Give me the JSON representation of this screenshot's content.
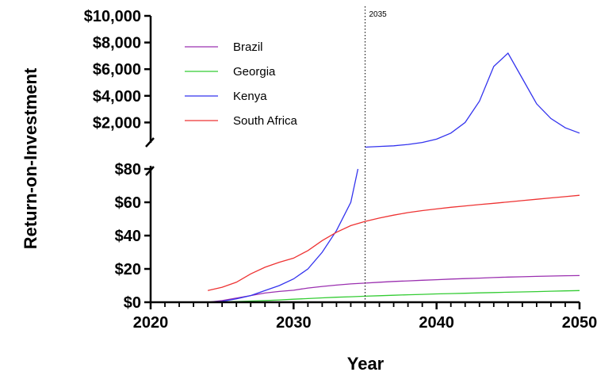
{
  "chart_data": {
    "type": "line",
    "xlabel": "Year",
    "ylabel": "Return-on-Investment",
    "xlim": [
      2020,
      2050
    ],
    "x_ticks": [
      2020,
      2030,
      2040,
      2050
    ],
    "x_tick_labels": [
      "2020",
      "2030",
      "2040",
      "2050"
    ],
    "y_axis_break": true,
    "lower_segment": {
      "ylim": [
        0,
        80
      ],
      "ticks": [
        0,
        20,
        40,
        60,
        80
      ],
      "tick_labels": [
        "$0",
        "$20",
        "$40",
        "$60",
        "$80"
      ]
    },
    "upper_segment": {
      "ylim": [
        0,
        10000
      ],
      "ticks": [
        2000,
        4000,
        6000,
        8000,
        10000
      ],
      "tick_labels": [
        "$2,000",
        "$4,000",
        "$6,000",
        "$8,000",
        "$10,000"
      ]
    },
    "reference_line": {
      "x": 2035,
      "label": "2035",
      "style": "dotted"
    },
    "legend_position": "upper-left",
    "grid": false,
    "series": [
      {
        "name": "Brazil",
        "color": "#9b30b0",
        "points": [
          [
            2024,
            0
          ],
          [
            2025,
            1
          ],
          [
            2026,
            2.5
          ],
          [
            2027,
            4
          ],
          [
            2028,
            5.5
          ],
          [
            2029,
            6.5
          ],
          [
            2030,
            7.2
          ],
          [
            2031,
            8.5
          ],
          [
            2032,
            9.5
          ],
          [
            2033,
            10.3
          ],
          [
            2034,
            11
          ],
          [
            2035,
            11.5
          ],
          [
            2036,
            12
          ],
          [
            2037,
            12.5
          ],
          [
            2038,
            12.8
          ],
          [
            2039,
            13.2
          ],
          [
            2040,
            13.5
          ],
          [
            2041,
            13.9
          ],
          [
            2042,
            14.2
          ],
          [
            2043,
            14.5
          ],
          [
            2044,
            14.8
          ],
          [
            2045,
            15.1
          ],
          [
            2046,
            15.3
          ],
          [
            2047,
            15.5
          ],
          [
            2048,
            15.7
          ],
          [
            2049,
            15.9
          ],
          [
            2050,
            16
          ]
        ]
      },
      {
        "name": "Georgia",
        "color": "#33cc33",
        "points": [
          [
            2024,
            0
          ],
          [
            2025,
            0.2
          ],
          [
            2026,
            0.4
          ],
          [
            2027,
            0.7
          ],
          [
            2028,
            1
          ],
          [
            2029,
            1.4
          ],
          [
            2030,
            1.8
          ],
          [
            2031,
            2.2
          ],
          [
            2032,
            2.6
          ],
          [
            2033,
            3
          ],
          [
            2034,
            3.3
          ],
          [
            2035,
            3.6
          ],
          [
            2036,
            3.9
          ],
          [
            2037,
            4.2
          ],
          [
            2038,
            4.5
          ],
          [
            2039,
            4.7
          ],
          [
            2040,
            5
          ],
          [
            2041,
            5.2
          ],
          [
            2042,
            5.4
          ],
          [
            2043,
            5.6
          ],
          [
            2044,
            5.8
          ],
          [
            2045,
            6
          ],
          [
            2046,
            6.2
          ],
          [
            2047,
            6.4
          ],
          [
            2048,
            6.6
          ],
          [
            2049,
            6.8
          ],
          [
            2050,
            7
          ]
        ]
      },
      {
        "name": "Kenya",
        "color": "#3333ee",
        "points": [
          [
            2024,
            0
          ],
          [
            2025,
            0.5
          ],
          [
            2026,
            2
          ],
          [
            2027,
            4
          ],
          [
            2028,
            7
          ],
          [
            2029,
            10
          ],
          [
            2030,
            14
          ],
          [
            2031,
            20
          ],
          [
            2032,
            30
          ],
          [
            2033,
            43
          ],
          [
            2034,
            60
          ],
          [
            2034.5,
            80
          ]
        ],
        "upper_points": [
          [
            2035,
            150
          ],
          [
            2036,
            200
          ],
          [
            2037,
            250
          ],
          [
            2038,
            350
          ],
          [
            2039,
            500
          ],
          [
            2040,
            750
          ],
          [
            2041,
            1200
          ],
          [
            2042,
            2000
          ],
          [
            2043,
            3600
          ],
          [
            2044,
            6200
          ],
          [
            2045,
            7200
          ],
          [
            2046,
            5300
          ],
          [
            2047,
            3400
          ],
          [
            2048,
            2300
          ],
          [
            2049,
            1600
          ],
          [
            2050,
            1200
          ]
        ]
      },
      {
        "name": "South Africa",
        "color": "#ee3333",
        "points": [
          [
            2024,
            7
          ],
          [
            2025,
            9
          ],
          [
            2026,
            12
          ],
          [
            2027,
            17
          ],
          [
            2028,
            21
          ],
          [
            2029,
            24
          ],
          [
            2030,
            26.5
          ],
          [
            2031,
            31
          ],
          [
            2032,
            37
          ],
          [
            2033,
            42
          ],
          [
            2034,
            46
          ],
          [
            2035,
            48.5
          ],
          [
            2036,
            50.5
          ],
          [
            2037,
            52.3
          ],
          [
            2038,
            53.8
          ],
          [
            2039,
            55
          ],
          [
            2040,
            56
          ],
          [
            2041,
            57
          ],
          [
            2042,
            57.8
          ],
          [
            2043,
            58.6
          ],
          [
            2044,
            59.4
          ],
          [
            2045,
            60.2
          ],
          [
            2046,
            61
          ],
          [
            2047,
            61.8
          ],
          [
            2048,
            62.6
          ],
          [
            2049,
            63.4
          ],
          [
            2050,
            64.2
          ]
        ]
      }
    ]
  }
}
